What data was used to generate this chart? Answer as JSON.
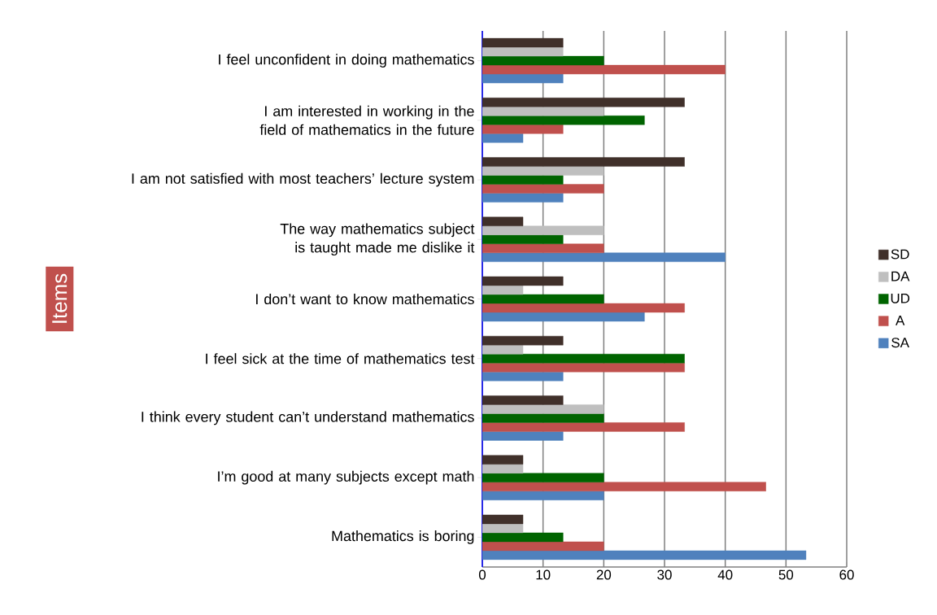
{
  "chart_data": {
    "type": "bar",
    "orientation": "horizontal",
    "ylabel": "Items",
    "categories": [
      "I feel unconfident in doing mathematics",
      "I am interested in working  in the field of mathematics in the future",
      "I am not satisfied with most teachers’ lecture system",
      "The way mathematics subject is taught made me dislike it",
      "I don’t want to know mathematics",
      "I feel sick at the time of mathematics test",
      "I think every student can’t understand mathematics",
      "I’m good at many subjects except math",
      "Mathematics is boring"
    ],
    "series": [
      {
        "name": "SD",
        "color": "#40302a",
        "values": [
          13.3,
          33.3,
          33.3,
          6.7,
          13.3,
          13.3,
          13.3,
          6.7,
          6.7
        ]
      },
      {
        "name": "DA",
        "color": "#bfbfbf",
        "values": [
          13.3,
          20,
          20,
          20,
          6.7,
          6.7,
          20,
          6.7,
          6.7
        ]
      },
      {
        "name": "UD",
        "color": "#006400",
        "values": [
          20,
          26.7,
          13.3,
          13.3,
          20,
          33.3,
          20,
          20,
          13.3
        ]
      },
      {
        "name": "A",
        "color": "#c0504d",
        "values": [
          40,
          13.3,
          20,
          20,
          33.3,
          33.3,
          33.3,
          46.7,
          20
        ]
      },
      {
        "name": "SA",
        "color": "#4f81bd",
        "values": [
          13.3,
          6.7,
          13.3,
          40,
          26.7,
          13.3,
          13.3,
          20,
          53.3
        ]
      }
    ],
    "xlim": [
      0,
      60
    ],
    "xticks": [
      0,
      10,
      20,
      30,
      40,
      50,
      60
    ],
    "grid": "x",
    "legend": "right"
  }
}
